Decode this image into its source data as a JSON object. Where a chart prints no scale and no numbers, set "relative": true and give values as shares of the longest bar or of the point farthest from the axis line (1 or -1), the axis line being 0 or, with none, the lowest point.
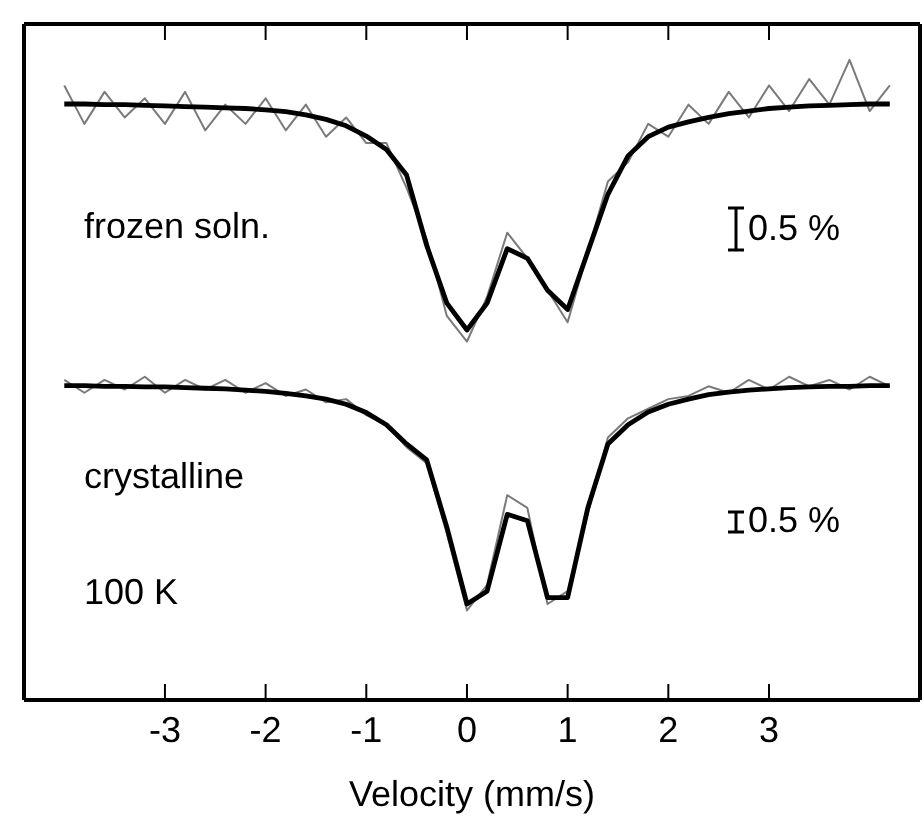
{
  "chart_data": {
    "type": "line",
    "relative": true,
    "xlabel": "Velocity (mm/s)",
    "xlim": [
      -4.4,
      4.5
    ],
    "xticks": [
      -3,
      -2,
      -1,
      0,
      1,
      2,
      3
    ],
    "x": [
      -4.0,
      -3.8,
      -3.6,
      -3.4,
      -3.2,
      -3.0,
      -2.8,
      -2.6,
      -2.4,
      -2.2,
      -2.0,
      -1.8,
      -1.6,
      -1.4,
      -1.2,
      -1.0,
      -0.8,
      -0.6,
      -0.4,
      -0.2,
      0.0,
      0.2,
      0.4,
      0.6,
      0.8,
      1.0,
      1.2,
      1.4,
      1.6,
      1.8,
      2.0,
      2.2,
      2.4,
      2.6,
      2.8,
      3.0,
      3.2,
      3.4,
      3.6,
      3.8,
      4.0,
      4.2
    ],
    "marker": "none",
    "line_style": "solid",
    "series": [
      {
        "color": "#7a7a7a",
        "values": [
          0.96,
          0.9,
          0.95,
          0.91,
          0.94,
          0.9,
          0.95,
          0.89,
          0.93,
          0.9,
          0.94,
          0.89,
          0.93,
          0.88,
          0.91,
          0.87,
          0.87,
          0.8,
          0.72,
          0.6,
          0.56,
          0.63,
          0.73,
          0.69,
          0.64,
          0.59,
          0.7,
          0.81,
          0.84,
          0.9,
          0.88,
          0.93,
          0.9,
          0.95,
          0.91,
          0.96,
          0.92,
          0.97,
          0.93,
          1.0,
          0.92,
          0.96
        ]
      },
      {
        "color": "#000000",
        "values": [
          0.931,
          0.931,
          0.93,
          0.93,
          0.929,
          0.928,
          0.927,
          0.926,
          0.925,
          0.924,
          0.922,
          0.919,
          0.914,
          0.907,
          0.897,
          0.881,
          0.86,
          0.82,
          0.71,
          0.62,
          0.578,
          0.62,
          0.705,
          0.69,
          0.64,
          0.61,
          0.7,
          0.79,
          0.85,
          0.88,
          0.895,
          0.903,
          0.91,
          0.916,
          0.92,
          0.924,
          0.926,
          0.928,
          0.929,
          0.93,
          0.931,
          0.931
        ]
      },
      {
        "color": "#7a7a7a",
        "values": [
          0.5,
          0.48,
          0.5,
          0.485,
          0.505,
          0.48,
          0.5,
          0.485,
          0.5,
          0.48,
          0.495,
          0.475,
          0.485,
          0.465,
          0.47,
          0.445,
          0.43,
          0.395,
          0.37,
          0.26,
          0.14,
          0.18,
          0.32,
          0.3,
          0.15,
          0.17,
          0.29,
          0.41,
          0.44,
          0.455,
          0.47,
          0.475,
          0.49,
          0.48,
          0.5,
          0.485,
          0.505,
          0.49,
          0.5,
          0.485,
          0.505,
          0.49
        ]
      },
      {
        "color": "#000000",
        "values": [
          0.491,
          0.491,
          0.49,
          0.49,
          0.489,
          0.489,
          0.488,
          0.487,
          0.486,
          0.484,
          0.482,
          0.479,
          0.475,
          0.47,
          0.462,
          0.449,
          0.43,
          0.4,
          0.375,
          0.27,
          0.15,
          0.17,
          0.29,
          0.28,
          0.16,
          0.16,
          0.3,
          0.4,
          0.43,
          0.45,
          0.462,
          0.47,
          0.477,
          0.481,
          0.484,
          0.486,
          0.488,
          0.489,
          0.49,
          0.49,
          0.491,
          0.491
        ]
      }
    ],
    "annotations": [
      "frozen soln.",
      "0.5 %",
      "crystalline",
      "100 K",
      "0.5 %"
    ]
  }
}
